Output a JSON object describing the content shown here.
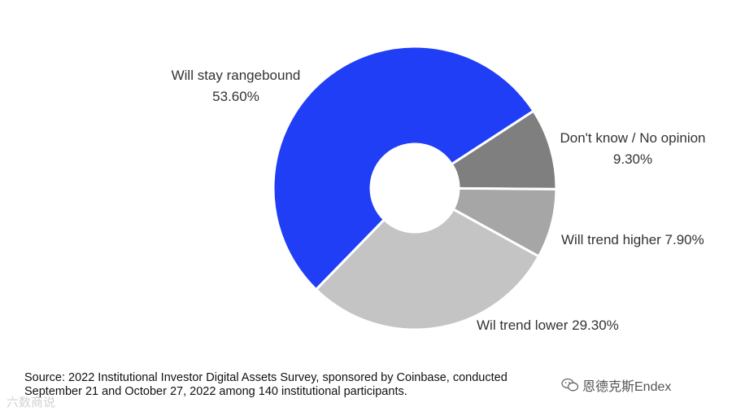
{
  "chart_data": {
    "type": "pie",
    "donut": true,
    "slices": [
      {
        "label": "Will stay rangebound",
        "value_text": "53.60%",
        "value": 53.6,
        "color": "#1f3ef5"
      },
      {
        "label": "Don't know / No opinion",
        "value_text": "9.30%",
        "value": 9.3,
        "color": "#7f7f7f"
      },
      {
        "label": "Will trend higher",
        "value_text": "7.90%",
        "value": 7.9,
        "color": "#a6a6a6"
      },
      {
        "label": "Wil trend lower",
        "value_text": "29.30%",
        "value": 29.3,
        "color": "#c4c4c4"
      }
    ]
  },
  "source": {
    "line1": "Source: 2022 Institutional Investor Digital Assets Survey, sponsored by Coinbase, conducted",
    "line2": "September 21 and October 27, 2022 among 140 institutional participants."
  },
  "watermark": {
    "account": "恩德克斯Endex",
    "left_text": "六数商说"
  }
}
